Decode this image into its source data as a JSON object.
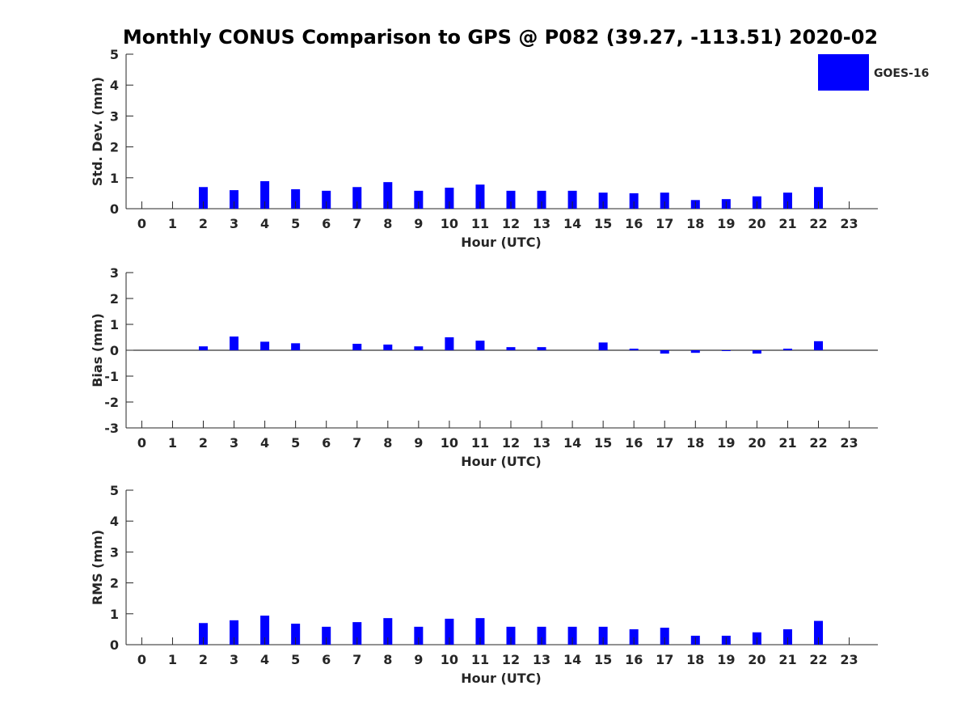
{
  "title": "Monthly CONUS Comparison to GPS @ P082 (39.27, -113.51) 2020-02",
  "legend": {
    "label": "GOES-16",
    "color": "#0000ff",
    "placement": "top-right"
  },
  "chart_data": [
    {
      "type": "bar",
      "xlabel": "Hour (UTC)",
      "ylabel": "Std. Dev. (mm)",
      "ylim": [
        0,
        5
      ],
      "yticks": [
        "0",
        "1",
        "2",
        "3",
        "4",
        "5"
      ],
      "categories": [
        "0",
        "1",
        "2",
        "3",
        "4",
        "5",
        "6",
        "7",
        "8",
        "9",
        "10",
        "11",
        "12",
        "13",
        "14",
        "15",
        "16",
        "17",
        "18",
        "19",
        "20",
        "21",
        "22",
        "23"
      ],
      "grid": false,
      "series": [
        {
          "name": "GOES-16",
          "color": "#0000ff",
          "values": [
            null,
            null,
            0.7,
            0.6,
            0.89,
            0.63,
            0.58,
            0.7,
            0.86,
            0.58,
            0.68,
            0.78,
            0.58,
            0.58,
            0.58,
            0.52,
            0.5,
            0.52,
            0.28,
            0.31,
            0.4,
            0.52,
            0.7,
            null
          ]
        }
      ]
    },
    {
      "type": "bar",
      "xlabel": "Hour (UTC)",
      "ylabel": "Bias (mm)",
      "ylim": [
        -3,
        3
      ],
      "yticks": [
        "-3",
        "-2",
        "-1",
        "0",
        "1",
        "2",
        "3"
      ],
      "categories": [
        "0",
        "1",
        "2",
        "3",
        "4",
        "5",
        "6",
        "7",
        "8",
        "9",
        "10",
        "11",
        "12",
        "13",
        "14",
        "15",
        "16",
        "17",
        "18",
        "19",
        "20",
        "21",
        "22",
        "23"
      ],
      "grid": false,
      "series": [
        {
          "name": "GOES-16",
          "color": "#0000ff",
          "values": [
            null,
            null,
            0.15,
            0.53,
            0.33,
            0.27,
            0.0,
            0.25,
            0.22,
            0.15,
            0.5,
            0.37,
            0.12,
            0.12,
            0.0,
            0.3,
            0.06,
            -0.13,
            -0.1,
            -0.03,
            -0.13,
            0.06,
            0.35,
            null
          ]
        }
      ]
    },
    {
      "type": "bar",
      "xlabel": "Hour (UTC)",
      "ylabel": "RMS (mm)",
      "ylim": [
        0,
        5
      ],
      "yticks": [
        "0",
        "1",
        "2",
        "3",
        "4",
        "5"
      ],
      "categories": [
        "0",
        "1",
        "2",
        "3",
        "4",
        "5",
        "6",
        "7",
        "8",
        "9",
        "10",
        "11",
        "12",
        "13",
        "14",
        "15",
        "16",
        "17",
        "18",
        "19",
        "20",
        "21",
        "22",
        "23"
      ],
      "grid": false,
      "series": [
        {
          "name": "GOES-16",
          "color": "#0000ff",
          "values": [
            null,
            null,
            0.7,
            0.79,
            0.94,
            0.68,
            0.58,
            0.73,
            0.86,
            0.58,
            0.84,
            0.86,
            0.58,
            0.58,
            0.58,
            0.58,
            0.5,
            0.55,
            0.29,
            0.29,
            0.4,
            0.5,
            0.77,
            null
          ]
        }
      ]
    }
  ]
}
